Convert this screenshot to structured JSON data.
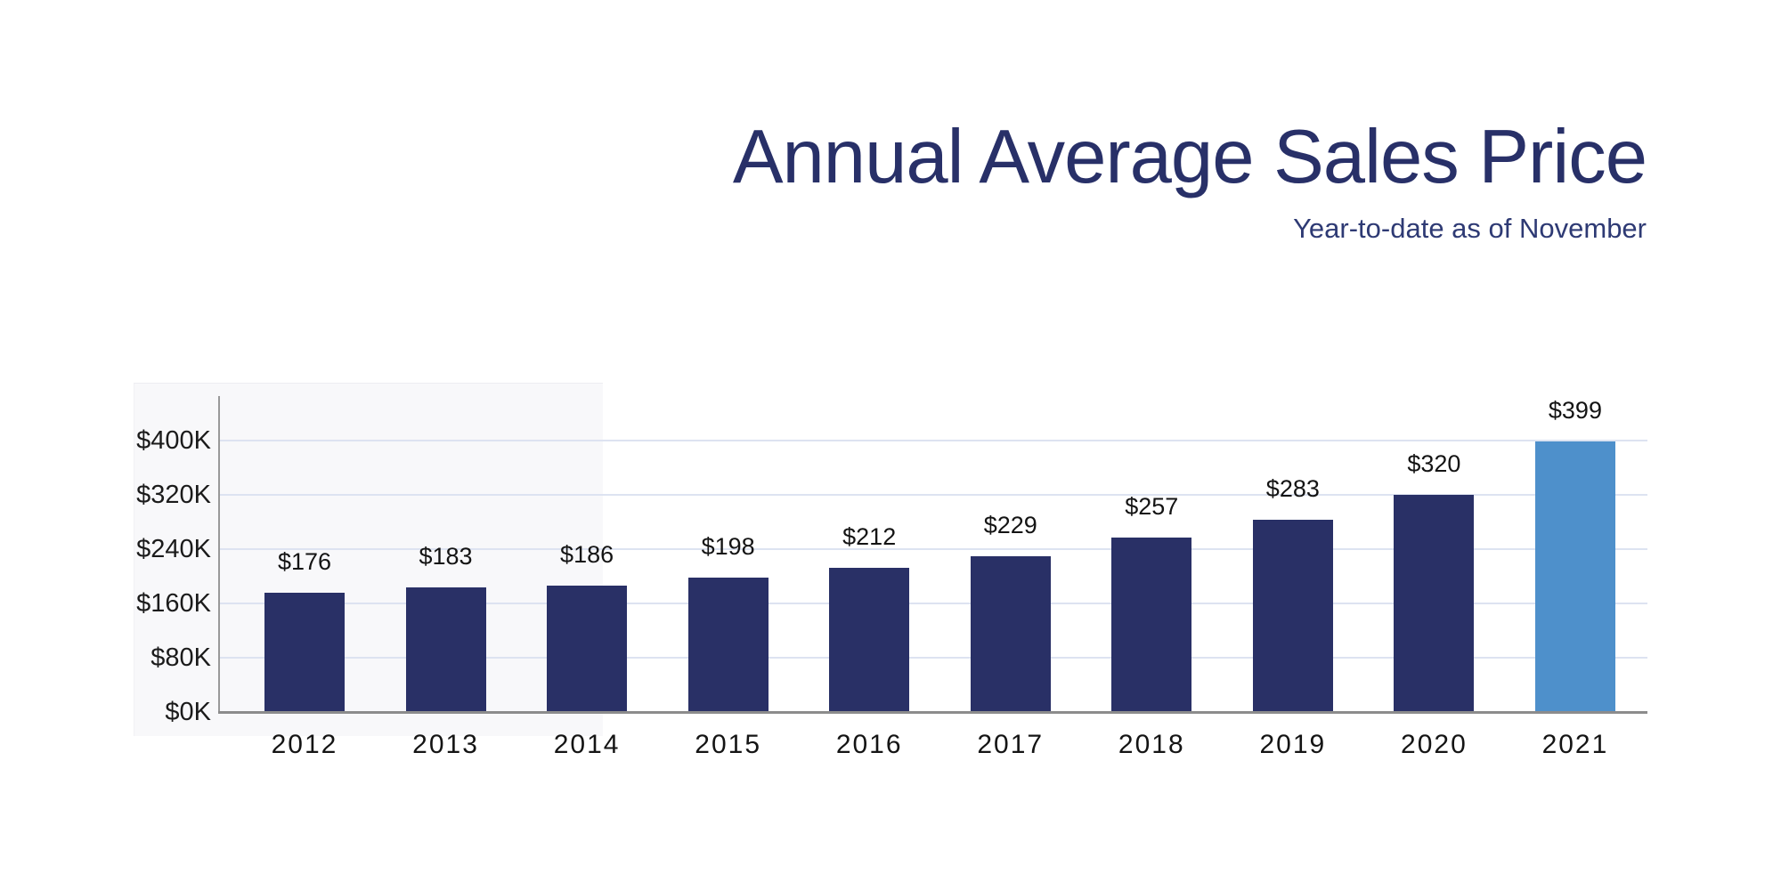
{
  "header": {
    "title": "Annual Average Sales Price",
    "subtitle": "Year-to-date as of November"
  },
  "chart_data": {
    "type": "bar",
    "title": "Annual Average Sales Price",
    "subtitle": "Year-to-date as of November",
    "categories": [
      "2012",
      "2013",
      "2014",
      "2015",
      "2016",
      "2017",
      "2018",
      "2019",
      "2020",
      "2021"
    ],
    "values": [
      176,
      183,
      186,
      198,
      212,
      229,
      257,
      283,
      320,
      399
    ],
    "bar_labels": [
      "$176",
      "$183",
      "$186",
      "$198",
      "$212",
      "$229",
      "$257",
      "$283",
      "$320",
      "$399"
    ],
    "unit": "thousands of dollars",
    "y_ticks": [
      {
        "value": 0,
        "label": "$0K"
      },
      {
        "value": 80,
        "label": "$80K"
      },
      {
        "value": 160,
        "label": "$160K"
      },
      {
        "value": 240,
        "label": "$240K"
      },
      {
        "value": 320,
        "label": "$320K"
      },
      {
        "value": 400,
        "label": "$400K"
      }
    ],
    "ylim": [
      0,
      400
    ],
    "grid": "horizontal-major-only",
    "legend": "none",
    "highlight_index": 9,
    "colors": {
      "bar": "#293066",
      "highlight_bar": "#4e90cb",
      "gridline": "#dde3f1",
      "axis_line": "#8c8c8c",
      "tick_text": "#1b1b1b",
      "title_text": "#283068"
    }
  }
}
